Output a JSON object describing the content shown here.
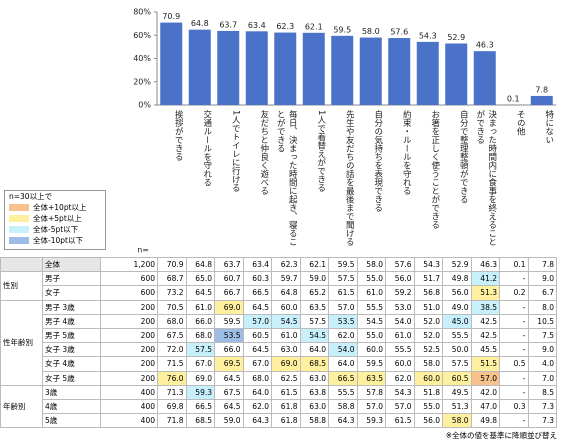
{
  "chart_data": {
    "type": "bar",
    "color": "#4a72c9",
    "categories": [
      "挨拶ができる",
      "交通ルールを守れる",
      "1人でトイレに行ける",
      "友だちと仲良く遊べる",
      "毎日、決まった時間に起き、寝ることができる",
      "1人で着替えができる",
      "先生や友だちの話を最後まで聞ける",
      "自分の気持ちを表現できる",
      "約束・ルールを守れる",
      "お箸を正しく使うことができる",
      "自分で整理整頓ができる",
      "決まった時間内に食事を終えることができる",
      "その他",
      "特にない"
    ],
    "values": [
      70.9,
      64.8,
      63.7,
      63.4,
      62.3,
      62.1,
      59.5,
      58.0,
      57.6,
      54.3,
      52.9,
      46.3,
      0.1,
      7.8
    ],
    "value_labels": [
      "70.9",
      "64.8",
      "63.7",
      "63.4",
      "62.3",
      "62.1",
      "59.5",
      "58.0",
      "57.6",
      "54.3",
      "52.9",
      "46.3",
      "0.1",
      "7.8"
    ],
    "ylim": [
      0,
      80
    ],
    "yticks": [
      {
        "value": 0,
        "label": "0%"
      },
      {
        "value": 20,
        "label": "20%"
      },
      {
        "value": 40,
        "label": "40%"
      },
      {
        "value": 60,
        "label": "60%"
      },
      {
        "value": 80,
        "label": "80%"
      }
    ]
  },
  "legend": {
    "title": "n=30以上で",
    "items": [
      {
        "label": "全体+10pt以上",
        "color": "#f7c28c"
      },
      {
        "label": "全体+5pt以上",
        "color": "#fff0a0"
      },
      {
        "label": "全体-5pt以下",
        "color": "#c8effc"
      },
      {
        "label": "全体-10pt以下",
        "color": "#9dbde6"
      }
    ]
  },
  "table": {
    "n_header": "n=",
    "total": {
      "label": "全体",
      "n": "1,200",
      "cells": [
        "70.9",
        "64.8",
        "63.7",
        "63.4",
        "62.3",
        "62.1",
        "59.5",
        "58.0",
        "57.6",
        "54.3",
        "52.9",
        "46.3",
        "0.1",
        "7.8"
      ]
    },
    "groups": [
      {
        "name": "性別",
        "rows": [
          {
            "label": "男子",
            "n": "600",
            "cells": [
              "68.7",
              "65.0",
              "60.7",
              "60.3",
              "59.7",
              "59.0",
              "57.5",
              "55.0",
              "56.0",
              "51.7",
              "49.8",
              "41.2",
              "-",
              "9.0"
            ]
          },
          {
            "label": "女子",
            "n": "600",
            "cells": [
              "73.2",
              "64.5",
              "66.7",
              "66.5",
              "64.8",
              "65.2",
              "61.5",
              "61.0",
              "59.2",
              "56.8",
              "56.0",
              "51.3",
              "0.2",
              "6.7"
            ]
          }
        ]
      },
      {
        "name": "性年齢別",
        "rows": [
          {
            "label": "男子 3歳",
            "n": "200",
            "cells": [
              "70.5",
              "61.0",
              "69.0",
              "64.5",
              "60.0",
              "63.5",
              "57.0",
              "55.5",
              "53.0",
              "51.0",
              "49.0",
              "38.5",
              "-",
              "8.0"
            ]
          },
          {
            "label": "男子 4歳",
            "n": "200",
            "cells": [
              "68.0",
              "66.0",
              "59.5",
              "57.0",
              "54.5",
              "57.5",
              "53.5",
              "54.5",
              "54.0",
              "52.0",
              "45.0",
              "42.5",
              "-",
              "10.5"
            ]
          },
          {
            "label": "男子 5歳",
            "n": "200",
            "cells": [
              "67.5",
              "68.0",
              "53.5",
              "60.5",
              "61.0",
              "54.5",
              "62.0",
              "55.0",
              "61.0",
              "52.0",
              "55.5",
              "42.5",
              "-",
              "7.5"
            ]
          },
          {
            "label": "女子 3歳",
            "n": "200",
            "cells": [
              "72.0",
              "57.5",
              "66.0",
              "64.5",
              "63.0",
              "64.0",
              "54.0",
              "60.0",
              "55.5",
              "52.5",
              "50.0",
              "45.5",
              "-",
              "9.0"
            ]
          },
          {
            "label": "女子 4歳",
            "n": "200",
            "cells": [
              "71.5",
              "67.0",
              "69.5",
              "67.0",
              "69.0",
              "68.5",
              "64.0",
              "59.5",
              "60.0",
              "58.0",
              "57.5",
              "51.5",
              "0.5",
              "4.0"
            ]
          },
          {
            "label": "女子 5歳",
            "n": "200",
            "cells": [
              "76.0",
              "69.0",
              "64.5",
              "68.0",
              "62.5",
              "63.0",
              "66.5",
              "63.5",
              "62.0",
              "60.0",
              "60.5",
              "57.0",
              "-",
              "7.0"
            ]
          }
        ]
      },
      {
        "name": "年齢別",
        "rows": [
          {
            "label": "3歳",
            "n": "400",
            "cells": [
              "71.3",
              "59.3",
              "67.5",
              "64.0",
              "61.5",
              "63.8",
              "55.5",
              "57.8",
              "54.3",
              "51.8",
              "49.5",
              "42.0",
              "-",
              "8.5"
            ]
          },
          {
            "label": "4歳",
            "n": "400",
            "cells": [
              "69.8",
              "66.5",
              "64.5",
              "62.0",
              "61.8",
              "63.0",
              "58.8",
              "57.0",
              "57.0",
              "55.0",
              "51.3",
              "47.0",
              "0.3",
              "7.3"
            ]
          },
          {
            "label": "5歳",
            "n": "400",
            "cells": [
              "71.8",
              "68.5",
              "59.0",
              "64.3",
              "61.8",
              "58.8",
              "64.3",
              "59.3",
              "61.5",
              "56.0",
              "58.0",
              "49.8",
              "-",
              "7.3"
            ]
          }
        ]
      }
    ]
  },
  "footnote": "※全体の値を基準に降順並び替え"
}
